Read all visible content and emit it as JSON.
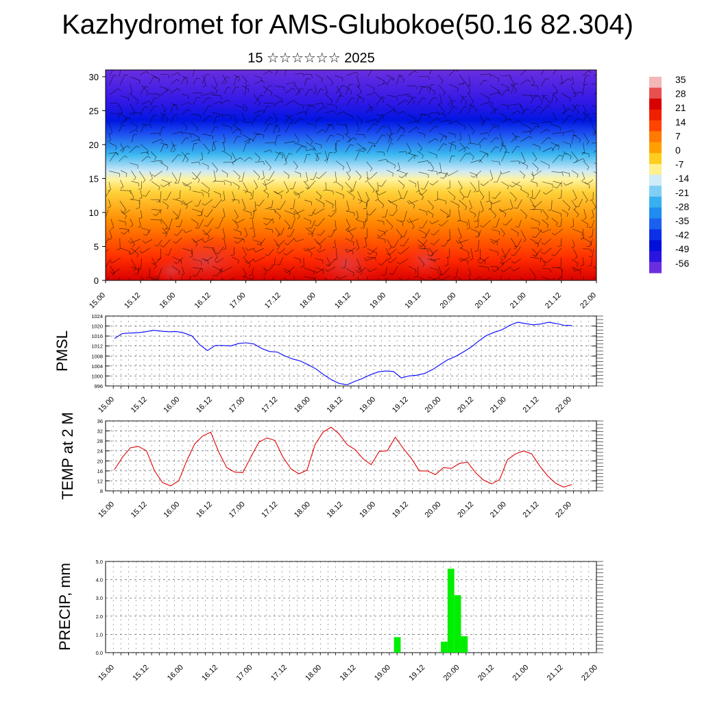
{
  "header": {
    "title": "Kazhydromet for AMS-Glubokoe(50.16 82.304)",
    "subtitle": "15 ☆☆☆☆☆☆ 2025"
  },
  "time_labels": [
    "15.00",
    "15.12",
    "16.00",
    "16.12",
    "17.00",
    "17.12",
    "18.00",
    "18.12",
    "19.00",
    "19.12",
    "20.00",
    "20.12",
    "21.00",
    "21.12",
    "22.00"
  ],
  "colors": {
    "pmsl_line": "#0000ff",
    "temp_line": "#e00000",
    "precip_bar": "#00ee00",
    "grid": "#555555"
  },
  "chart_data": [
    {
      "type": "heatmap",
      "title": "",
      "description_of_axes": "x: forecast time; y: height (km)",
      "x_ticks": [
        "15.00",
        "15.12",
        "16.00",
        "16.12",
        "17.00",
        "17.12",
        "18.00",
        "18.12",
        "19.00",
        "19.12",
        "20.00",
        "20.12",
        "21.00",
        "21.12",
        "22.00"
      ],
      "ylim": [
        0,
        31
      ],
      "y_ticks": [
        0,
        5,
        10,
        15,
        20,
        25,
        30
      ],
      "colorbar_labels": [
        "35",
        "28",
        "21",
        "14",
        "7",
        "0",
        "-7",
        "-14",
        "-21",
        "-28",
        "-35",
        "-42",
        "-49",
        "-56"
      ],
      "overlay": "wind barbs"
    },
    {
      "type": "line",
      "ylabel": "PMSL",
      "ylim": [
        996,
        1024
      ],
      "y_ticks": [
        996,
        1000,
        1004,
        1008,
        1012,
        1016,
        1020,
        1024
      ],
      "x_ticks": [
        "15.00",
        "15.12",
        "16.00",
        "16.12",
        "17.00",
        "17.12",
        "18.00",
        "18.12",
        "19.00",
        "19.12",
        "20.00",
        "20.12",
        "21.00",
        "21.12",
        "22.00"
      ],
      "series": [
        {
          "values": [
            1015.0,
            1017.0,
            1017.2,
            1017.3,
            1017.7,
            1018.3,
            1018.0,
            1017.7,
            1017.8,
            1017.2,
            1016.0,
            1012.5,
            1010.2,
            1012.2,
            1012.2,
            1012.0,
            1013.0,
            1013.3,
            1012.8,
            1011.0,
            1009.8,
            1009.6,
            1008.0,
            1006.8,
            1006.0,
            1004.5,
            1002.8,
            1000.5,
            998.5,
            997.0,
            996.5,
            997.8,
            999.0,
            1000.5,
            1001.6,
            1002.0,
            1001.8,
            999.2,
            1000.0,
            1000.3,
            1001.0,
            1002.5,
            1004.5,
            1006.5,
            1007.8,
            1009.6,
            1011.5,
            1014.0,
            1016.2,
            1017.5,
            1018.5,
            1020.3,
            1021.5,
            1021.0,
            1020.5,
            1020.8,
            1021.5,
            1021.0,
            1020.3,
            1020.2
          ]
        }
      ]
    },
    {
      "type": "line",
      "ylabel": "TEMP at 2 M",
      "ylim": [
        8,
        36
      ],
      "y_ticks": [
        8,
        12,
        16,
        20,
        24,
        28,
        32,
        36
      ],
      "x_ticks": [
        "15.00",
        "15.12",
        "16.00",
        "16.12",
        "17.00",
        "17.12",
        "18.00",
        "18.12",
        "19.00",
        "19.12",
        "20.00",
        "20.12",
        "21.00",
        "21.12",
        "22.00"
      ],
      "series": [
        {
          "values": [
            16.5,
            21.5,
            25.3,
            25.8,
            24.0,
            16.0,
            11.3,
            10.0,
            12.0,
            20.0,
            26.8,
            30.0,
            31.5,
            23.5,
            17.3,
            15.5,
            15.3,
            21.5,
            27.5,
            29.2,
            28.2,
            21.5,
            16.8,
            14.8,
            16.3,
            26.5,
            31.5,
            33.5,
            30.8,
            26.5,
            24.5,
            20.8,
            18.5,
            23.8,
            24.0,
            29.5,
            25.0,
            21.0,
            16.0,
            16.0,
            14.5,
            17.3,
            17.0,
            19.0,
            19.5,
            15.3,
            12.3,
            10.8,
            12.5,
            20.5,
            22.8,
            24.0,
            22.8,
            18.0,
            14.0,
            11.0,
            9.5,
            10.5
          ]
        }
      ]
    },
    {
      "type": "bar",
      "ylabel": "PRECIP, mm",
      "ylim": [
        0,
        5
      ],
      "y_ticks": [
        "0.0",
        "1.0",
        "2.0",
        "3.0",
        "4.0",
        "5.0"
      ],
      "x_ticks": [
        "15.00",
        "15.12",
        "16.00",
        "16.12",
        "17.00",
        "17.12",
        "18.00",
        "18.12",
        "19.00",
        "19.12",
        "20.00",
        "20.12",
        "21.00",
        "21.12",
        "22.00"
      ],
      "series": [
        {
          "values": [
            0,
            0,
            0,
            0,
            0,
            0,
            0,
            0,
            0,
            0,
            0,
            0,
            0,
            0,
            0,
            0,
            0,
            0,
            0,
            0,
            0,
            0,
            0,
            0,
            0,
            0,
            0,
            0,
            0,
            0,
            0,
            0,
            0,
            0,
            0,
            0,
            0,
            0,
            0,
            0,
            0,
            0,
            0.85,
            0,
            0,
            0,
            0,
            0,
            0,
            0.6,
            4.6,
            3.15,
            0.9,
            0,
            0,
            0,
            0,
            0,
            0,
            0,
            0,
            0,
            0,
            0,
            0,
            0,
            0,
            0,
            0,
            0,
            0,
            0
          ]
        }
      ]
    }
  ]
}
